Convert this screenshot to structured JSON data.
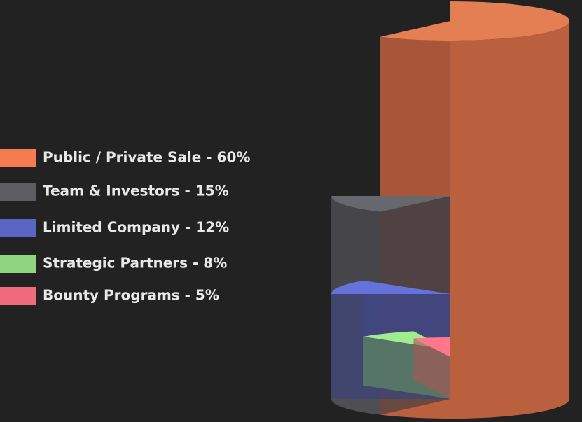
{
  "chart_data": {
    "type": "pie",
    "categories": [
      "Public / Private Sale - 60%",
      "Team & Investors - 15%",
      "Limited Company - 12%",
      "Strategic Partners - 8%",
      "Bounty Programs - 5%"
    ],
    "values": [
      60,
      15,
      12,
      8,
      5
    ],
    "colors": [
      "#f47c50",
      "#5c5c62",
      "#5a66c2",
      "#8fd47e",
      "#f06a7c"
    ]
  }
}
